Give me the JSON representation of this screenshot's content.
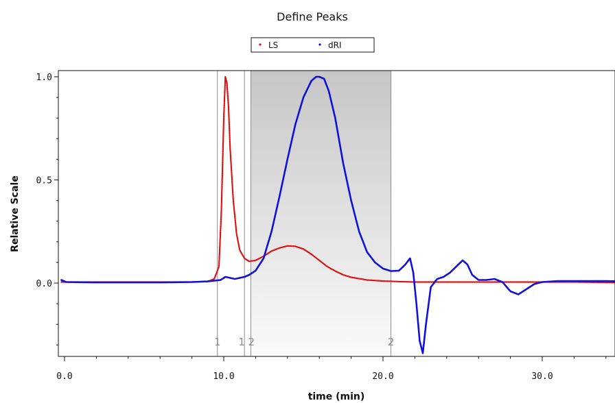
{
  "chart_data": {
    "type": "line",
    "title": "Define Peaks",
    "xlabel": "time (min)",
    "ylabel": "Relative Scale",
    "xlim": [
      -0.5,
      35
    ],
    "ylim": [
      -0.35,
      1.02
    ],
    "x_ticks": [
      0,
      10,
      20,
      30
    ],
    "x_tick_labels": [
      "0.0",
      "10.0",
      "20.0",
      "30.0"
    ],
    "y_ticks": [
      0,
      0.5,
      1
    ],
    "y_tick_labels": [
      "0.0",
      "0.5",
      "1.0"
    ],
    "legend_position": "top-center",
    "peak_region": [
      11.7,
      20.5
    ],
    "peak_markers": [
      {
        "label": "1",
        "x": 9.6
      },
      {
        "label": "1",
        "x": 11.3
      },
      {
        "label": "2",
        "x": 11.7
      },
      {
        "label": "2",
        "x": 20.5
      }
    ],
    "series": [
      {
        "name": "LS",
        "color": "#e01010",
        "style": "dotted",
        "x": [
          -0.2,
          2,
          4,
          6,
          8,
          9,
          9.4,
          9.7,
          9.85,
          10.0,
          10.1,
          10.2,
          10.3,
          10.4,
          10.6,
          10.8,
          11.0,
          11.3,
          11.6,
          12.0,
          12.5,
          13.0,
          13.5,
          14.0,
          14.5,
          15.0,
          15.5,
          16.0,
          16.5,
          17.0,
          17.5,
          18.0,
          19.0,
          20.0,
          21.0,
          22.0,
          24.0,
          26.0,
          28.0,
          30.0,
          32.0,
          34.0,
          35.0
        ],
        "y": [
          0.005,
          0.005,
          0.005,
          0.005,
          0.005,
          0.008,
          0.02,
          0.08,
          0.35,
          0.8,
          1.0,
          0.97,
          0.85,
          0.65,
          0.4,
          0.24,
          0.16,
          0.12,
          0.105,
          0.11,
          0.13,
          0.155,
          0.17,
          0.18,
          0.178,
          0.165,
          0.14,
          0.11,
          0.08,
          0.058,
          0.04,
          0.028,
          0.015,
          0.01,
          0.007,
          0.005,
          0.005,
          0.005,
          0.005,
          0.005,
          0.005,
          0.003,
          0.002
        ]
      },
      {
        "name": "dRI",
        "color": "#1010dd",
        "style": "solid",
        "x": [
          -0.2,
          0.1,
          2,
          4,
          6,
          8,
          9,
          9.8,
          10.1,
          10.4,
          10.7,
          11.0,
          11.3,
          11.6,
          12.0,
          12.5,
          13.0,
          13.5,
          14.0,
          14.5,
          15.0,
          15.5,
          15.8,
          16.0,
          16.3,
          16.6,
          17.0,
          17.5,
          18.0,
          18.5,
          19.0,
          19.5,
          20.0,
          20.5,
          21.0,
          21.4,
          21.7,
          21.9,
          22.1,
          22.3,
          22.5,
          22.7,
          23.0,
          23.4,
          23.8,
          24.2,
          24.6,
          25.0,
          25.3,
          25.6,
          26.0,
          26.5,
          27.0,
          27.5,
          28.0,
          28.5,
          29.0,
          29.5,
          30.0,
          31.0,
          32.0,
          33.0,
          34.0,
          35.0
        ],
        "y": [
          0.015,
          0.005,
          0.003,
          0.003,
          0.003,
          0.005,
          0.008,
          0.015,
          0.03,
          0.025,
          0.02,
          0.025,
          0.03,
          0.04,
          0.06,
          0.12,
          0.25,
          0.42,
          0.6,
          0.77,
          0.9,
          0.98,
          1.0,
          1.0,
          0.99,
          0.93,
          0.8,
          0.58,
          0.4,
          0.25,
          0.15,
          0.1,
          0.07,
          0.058,
          0.06,
          0.09,
          0.12,
          0.05,
          -0.1,
          -0.28,
          -0.34,
          -0.2,
          -0.02,
          0.02,
          0.03,
          0.05,
          0.08,
          0.11,
          0.09,
          0.04,
          0.015,
          0.015,
          0.02,
          0.005,
          -0.04,
          -0.055,
          -0.03,
          -0.005,
          0.005,
          0.01,
          0.01,
          0.01,
          0.01,
          0.008
        ]
      }
    ]
  }
}
